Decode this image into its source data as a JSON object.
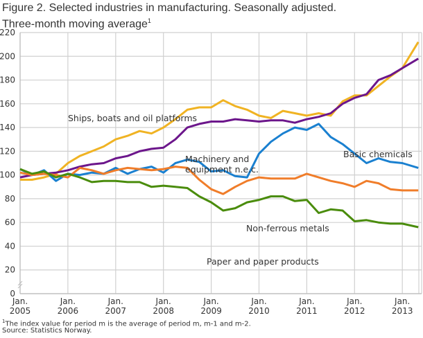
{
  "title_line1": "Figure 2. Selected industries in manufacturing. Seasonally adjusted.",
  "title_line2": "Three-month moving average",
  "title_sup": "1",
  "footnote_sup": "1",
  "footnote": "The index value for period m is the average of period m, m-1 and m-2.",
  "source": "Source: Statistics Norway.",
  "chart_data": {
    "type": "line",
    "title": "Figure 2. Selected industries in manufacturing. Seasonally adjusted. Three-month moving average",
    "xlabel": "",
    "ylabel": "",
    "ylim": [
      0,
      220
    ],
    "yticks": [
      0,
      20,
      40,
      60,
      80,
      100,
      120,
      140,
      160,
      180,
      200,
      220
    ],
    "xtick_labels": [
      [
        "Jan.",
        "2005"
      ],
      [
        "Jan.",
        "2006"
      ],
      [
        "Jan.",
        "2007"
      ],
      [
        "Jan.",
        "2008"
      ],
      [
        "Jan.",
        "2009"
      ],
      [
        "Jan.",
        "2010"
      ],
      [
        "Jan.",
        "2011"
      ],
      [
        "Jan.",
        "2012"
      ],
      [
        "Jan.",
        "2013"
      ]
    ],
    "grid": true,
    "legend": "inline labels",
    "x": [
      "2005-01",
      "2005-04",
      "2005-07",
      "2005-10",
      "2006-01",
      "2006-04",
      "2006-07",
      "2006-10",
      "2007-01",
      "2007-04",
      "2007-07",
      "2007-10",
      "2008-01",
      "2008-04",
      "2008-07",
      "2008-10",
      "2009-01",
      "2009-04",
      "2009-07",
      "2009-10",
      "2010-01",
      "2010-04",
      "2010-07",
      "2010-10",
      "2011-01",
      "2011-04",
      "2011-07",
      "2011-10",
      "2012-01",
      "2012-04",
      "2012-07",
      "2012-10",
      "2013-01",
      "2013-05"
    ],
    "series": [
      {
        "name": "Ships, boats and oil platforms",
        "color": "#f0b323",
        "values": [
          96,
          96,
          98,
          101,
          110,
          116,
          120,
          124,
          130,
          133,
          137,
          135,
          140,
          147,
          155,
          157,
          157,
          163,
          158,
          155,
          150,
          148,
          154,
          152,
          150,
          152,
          150,
          162,
          167,
          167,
          175,
          183,
          190,
          212
        ]
      },
      {
        "name": "Machinery and equipment n.e.c.",
        "color": "#6c168b",
        "values": [
          98,
          100,
          101,
          102,
          104,
          107,
          109,
          110,
          114,
          116,
          120,
          122,
          123,
          130,
          140,
          143,
          145,
          145,
          147,
          146,
          145,
          146,
          146,
          144,
          147,
          149,
          152,
          160,
          165,
          168,
          180,
          184,
          190,
          198
        ]
      },
      {
        "name": "Basic chemicals",
        "color": "#1a80d0",
        "values": [
          105,
          100,
          104,
          95,
          101,
          100,
          102,
          101,
          106,
          101,
          105,
          107,
          102,
          110,
          113,
          111,
          103,
          104,
          99,
          98,
          118,
          128,
          135,
          140,
          138,
          143,
          132,
          126,
          118,
          110,
          114,
          111,
          110,
          106
        ]
      },
      {
        "name": "Non-ferrous metals",
        "color": "#f07d2a",
        "values": [
          102,
          100,
          101,
          100,
          98,
          106,
          104,
          101,
          104,
          106,
          105,
          104,
          105,
          107,
          106,
          96,
          88,
          84,
          90,
          95,
          98,
          97,
          97,
          97,
          101,
          98,
          95,
          93,
          90,
          95,
          93,
          88,
          87,
          87
        ]
      },
      {
        "name": "Paper and paper products",
        "color": "#4a8c0c",
        "values": [
          105,
          101,
          103,
          98,
          101,
          98,
          94,
          95,
          95,
          94,
          94,
          90,
          91,
          90,
          89,
          82,
          77,
          70,
          72,
          77,
          79,
          82,
          82,
          78,
          79,
          68,
          71,
          70,
          61,
          62,
          60,
          59,
          59,
          56
        ]
      }
    ]
  }
}
